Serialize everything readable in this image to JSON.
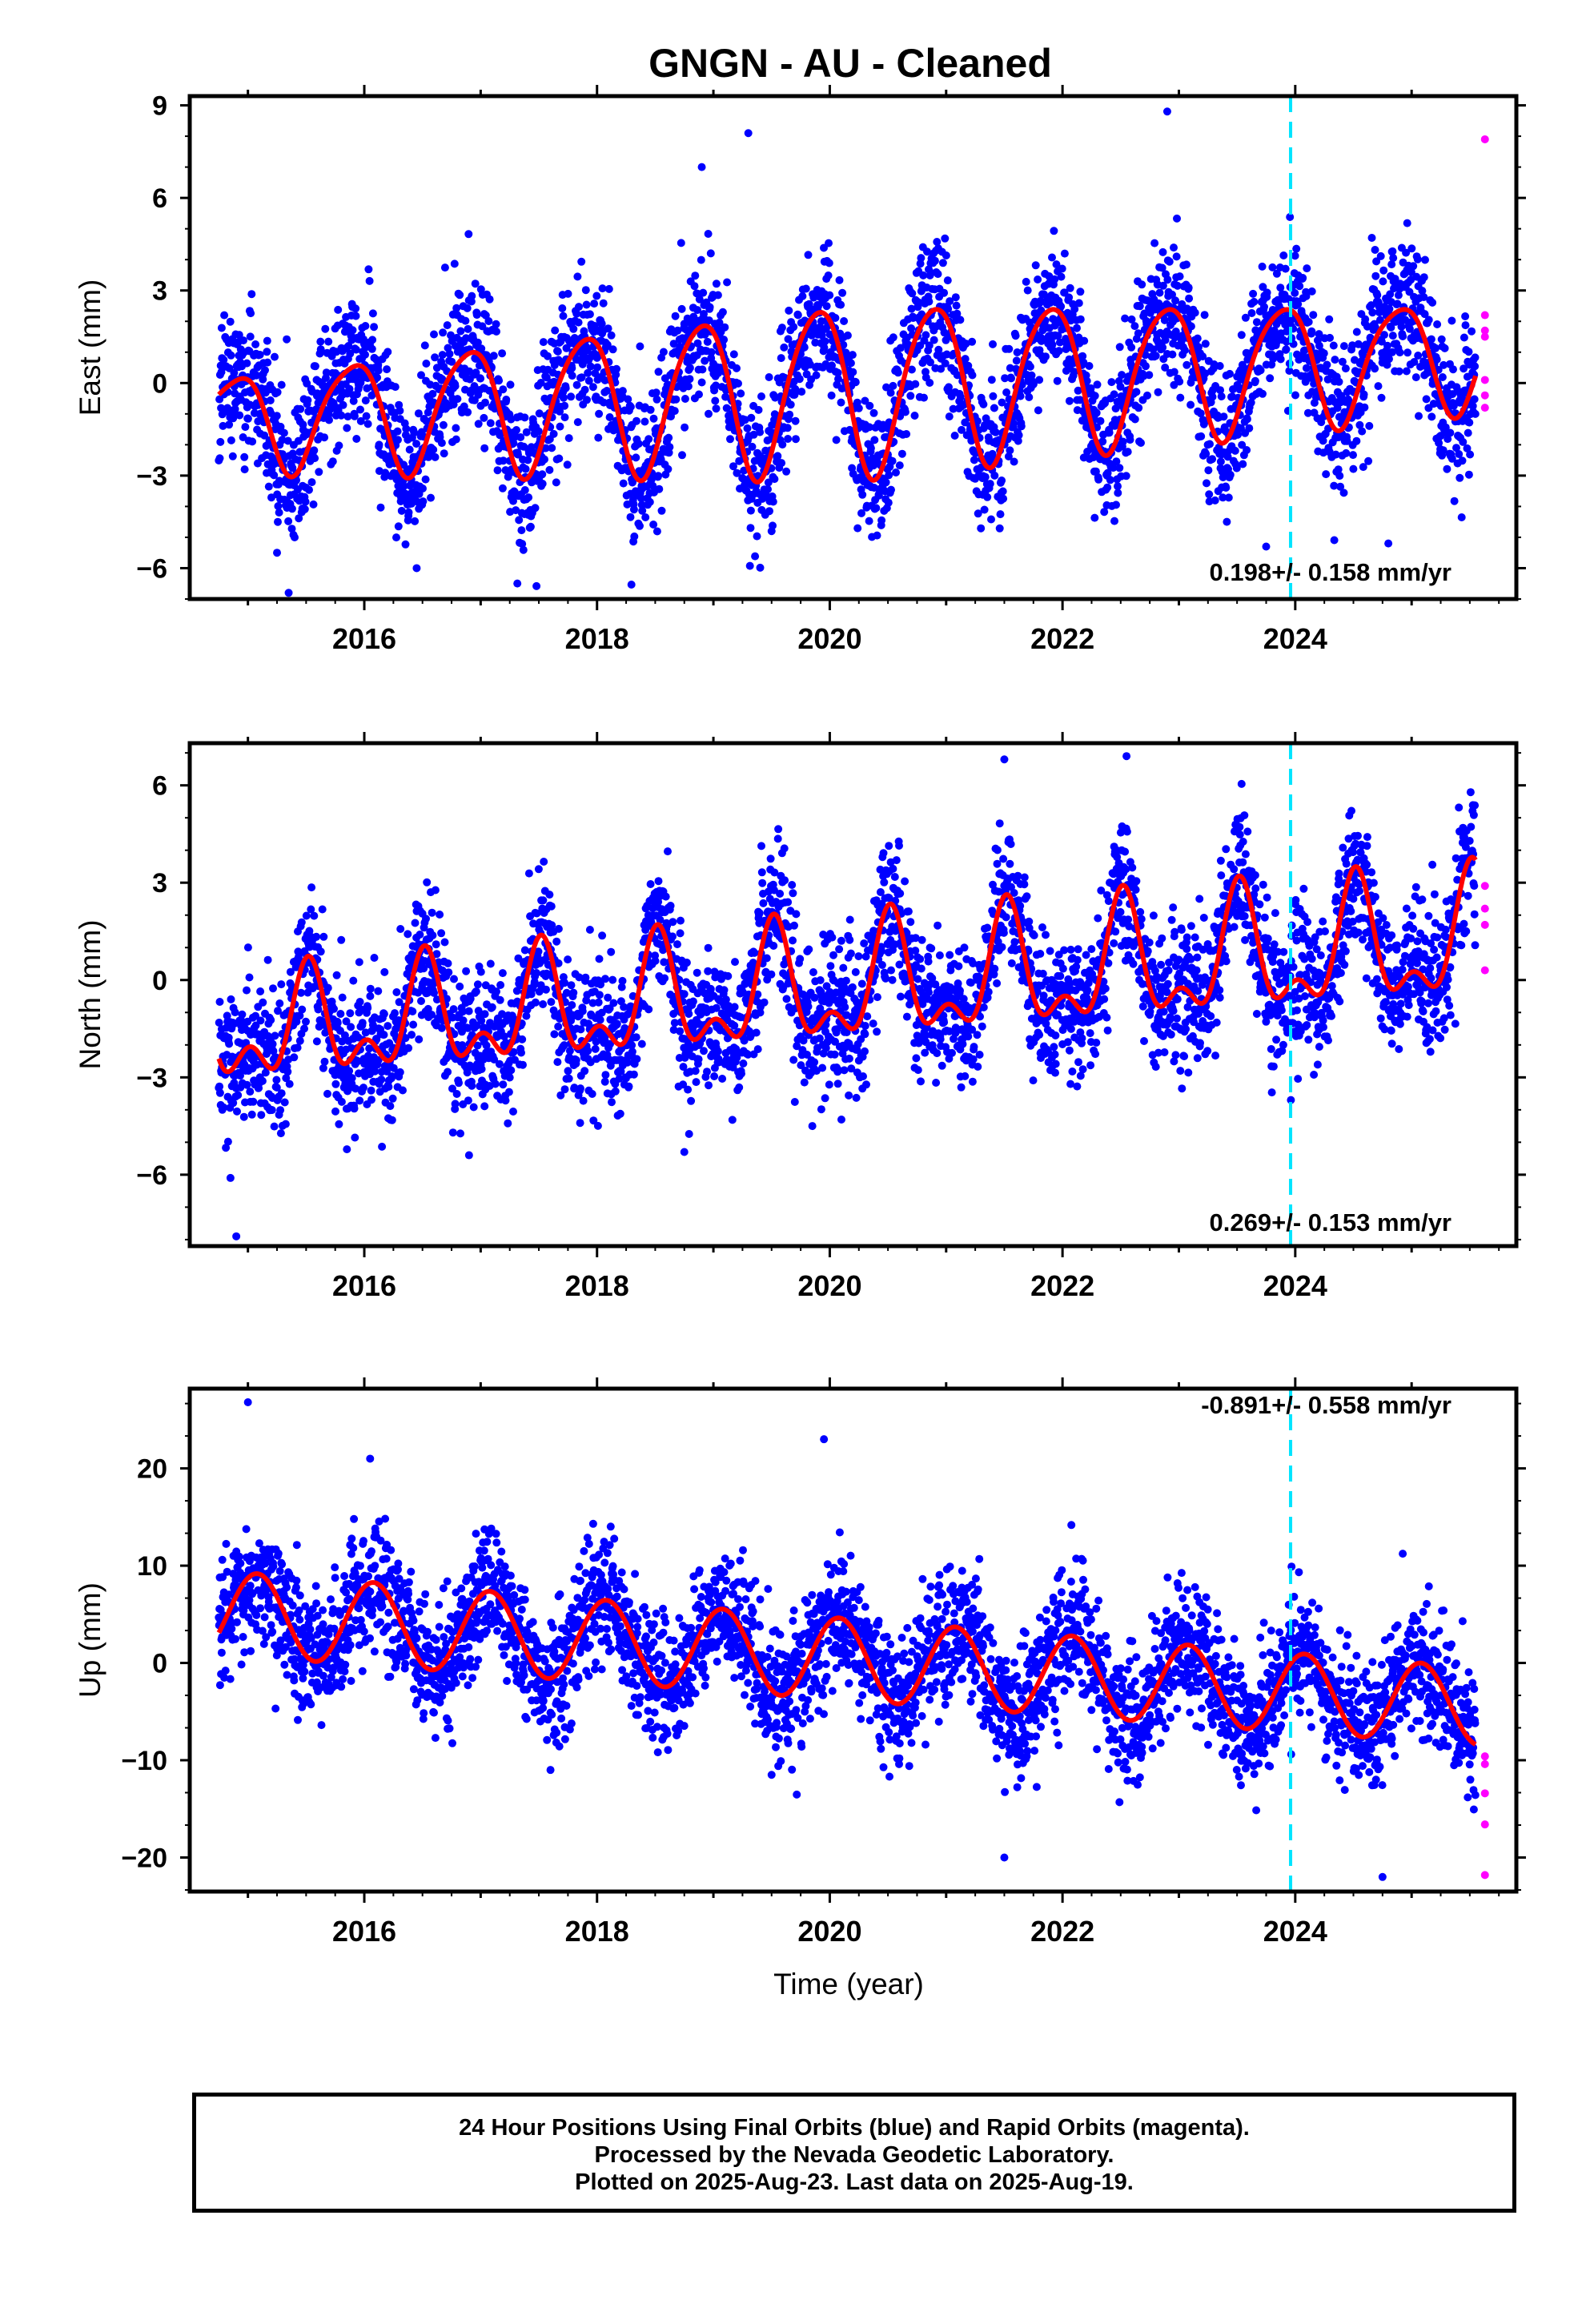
{
  "title": "GNGN  - AU - Cleaned",
  "xlabel": "Time (year)",
  "footer": {
    "line1": "24 Hour Positions Using Final Orbits (blue) and Rapid Orbits (magenta).",
    "line2": "Processed by the Nevada Geodetic Laboratory.",
    "line3": "Plotted on 2025-Aug-23. Last data on 2025-Aug-19."
  },
  "colors": {
    "final_orbits": "#0000ff",
    "rapid_orbits": "#ff00ff",
    "model_fit": "#ff0000",
    "event_line": "#00e5ff"
  },
  "chart_data": [
    {
      "type": "scatter",
      "component": "east",
      "ylabel": "East (mm)",
      "rate_label": "0.198+/- 0.158 mm/yr",
      "xlim": [
        2014.5,
        2025.9
      ],
      "ylim": [
        -7,
        9.3
      ],
      "yticks": [
        -6,
        -3,
        0,
        3,
        6,
        9
      ],
      "xticks": [
        2016,
        2018,
        2020,
        2022,
        2024
      ],
      "grid": false,
      "event_line_x": 2023.96,
      "series": [
        {
          "role": "final_orbits",
          "x_range": [
            2014.75,
            2025.55
          ],
          "scatter_sd": 1.15,
          "outliers": [
            [
              2018.9,
              7.0
            ],
            [
              2019.3,
              8.1
            ],
            [
              2022.9,
              8.8
            ],
            [
              2015.35,
              -6.8
            ],
            [
              2016.45,
              -6.0
            ],
            [
              2015.25,
              -5.5
            ],
            [
              2023.75,
              -5.3
            ],
            [
              2024.8,
              -5.2
            ],
            [
              2019.5,
              -4.8
            ]
          ]
        },
        {
          "role": "rapid_orbits",
          "points": [
            [
              2025.63,
              7.9
            ],
            [
              2025.63,
              2.2
            ],
            [
              2025.63,
              1.7
            ],
            [
              2025.63,
              1.5
            ],
            [
              2025.63,
              0.1
            ],
            [
              2025.63,
              -0.4
            ],
            [
              2025.63,
              -0.8
            ]
          ]
        },
        {
          "role": "model_fit",
          "offset": -0.2,
          "trend_per_year": 0.198,
          "ref_year": 2020,
          "t0": 2014.75,
          "t1": 2025.55,
          "amp_start": 1.5,
          "amp_mid": 2.8,
          "amp_end": 1.7,
          "phase_peak": 0.89,
          "semi_amp": 0.3,
          "semi_phase": 0.1
        }
      ]
    },
    {
      "type": "scatter",
      "component": "north",
      "ylabel": "North (mm)",
      "rate_label": "0.269+/- 0.153 mm/yr",
      "xlim": [
        2014.5,
        2025.9
      ],
      "ylim": [
        -8.2,
        7.3
      ],
      "yticks": [
        -6,
        -3,
        0,
        3,
        6
      ],
      "xticks": [
        2016,
        2018,
        2020,
        2022,
        2024
      ],
      "grid": false,
      "event_line_x": 2023.96,
      "series": [
        {
          "role": "final_orbits",
          "x_range": [
            2014.75,
            2025.55
          ],
          "scatter_sd": 1.05,
          "outliers": [
            [
              2021.5,
              6.8
            ],
            [
              2022.55,
              6.9
            ],
            [
              2014.9,
              -7.9
            ],
            [
              2014.85,
              -6.1
            ],
            [
              2018.75,
              -5.3
            ],
            [
              2016.9,
              -5.4
            ],
            [
              2019.85,
              -4.5
            ],
            [
              2020.1,
              -4.3
            ]
          ]
        },
        {
          "role": "rapid_orbits",
          "points": [
            [
              2025.63,
              2.9
            ],
            [
              2025.63,
              2.2
            ],
            [
              2025.63,
              1.7
            ],
            [
              2025.63,
              0.3
            ]
          ]
        },
        {
          "role": "model_fit",
          "offset": -0.3,
          "trend_per_year": 0.269,
          "ref_year": 2020,
          "t0": 2014.75,
          "t1": 2025.55,
          "amp_start": 1.3,
          "amp_mid": 1.6,
          "amp_end": 1.7,
          "phase_peak": 0.52,
          "semi_amp": 0.9,
          "semi_phase": 0.52
        }
      ]
    },
    {
      "type": "scatter",
      "component": "up",
      "ylabel": "Up (mm)",
      "rate_label": "-0.891+/- 0.558 mm/yr",
      "xlim": [
        2014.5,
        2025.9
      ],
      "ylim": [
        -23.5,
        28.2
      ],
      "yticks": [
        -20,
        -10,
        0,
        10,
        20
      ],
      "xticks": [
        2016,
        2018,
        2020,
        2022,
        2024
      ],
      "grid": false,
      "event_line_x": 2023.96,
      "series": [
        {
          "role": "final_orbits",
          "x_range": [
            2014.75,
            2025.55
          ],
          "scatter_sd": 3.3,
          "outliers": [
            [
              2015.0,
              26.8
            ],
            [
              2016.05,
              21.0
            ],
            [
              2019.95,
              23.0
            ],
            [
              2021.5,
              -20.0
            ],
            [
              2024.75,
              -22.0
            ],
            [
              2017.6,
              -11.0
            ],
            [
              2019.5,
              -11.5
            ]
          ]
        },
        {
          "role": "rapid_orbits",
          "points": [
            [
              2025.63,
              -9.6
            ],
            [
              2025.63,
              -10.4
            ],
            [
              2025.63,
              -13.4
            ],
            [
              2025.63,
              -16.6
            ],
            [
              2025.63,
              -21.8
            ]
          ]
        },
        {
          "role": "model_fit",
          "offset": 0.5,
          "trend_per_year": -0.891,
          "ref_year": 2020,
          "t0": 2014.75,
          "t1": 2025.55,
          "amp_start": 4.3,
          "amp_mid": 4.2,
          "amp_end": 4.0,
          "phase_peak": 0.08,
          "semi_amp": 0,
          "semi_phase": 0
        }
      ]
    }
  ]
}
